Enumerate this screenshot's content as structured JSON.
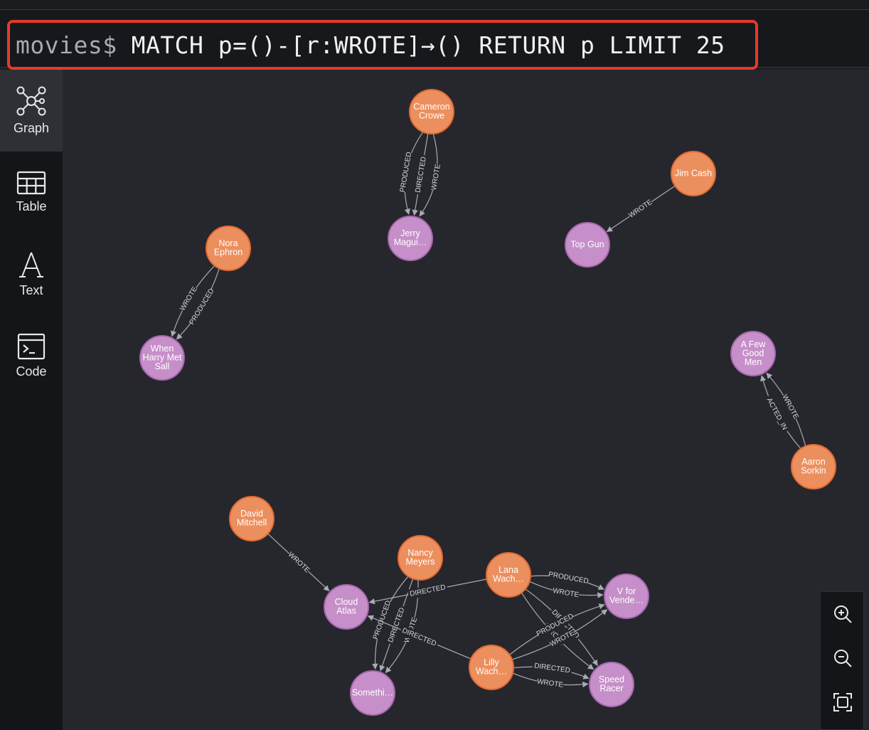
{
  "query": {
    "prompt": "movies$",
    "text": "MATCH p=()-[r:WROTE]→() RETURN p LIMIT 25"
  },
  "sidebar": {
    "items": [
      {
        "label": "Graph",
        "icon": "graph-icon",
        "active": true
      },
      {
        "label": "Table",
        "icon": "table-icon",
        "active": false
      },
      {
        "label": "Text",
        "icon": "text-icon",
        "active": false
      },
      {
        "label": "Code",
        "icon": "code-icon",
        "active": false
      }
    ]
  },
  "zoom": {
    "controls": [
      "zoom-in-icon",
      "zoom-out-icon",
      "fit-screen-icon"
    ]
  },
  "colors": {
    "person": "#ec8f5e",
    "person_border": "#e26a32",
    "movie": "#c68fc9",
    "movie_border": "#a668ad",
    "edge": "#a9abb3",
    "canvas": "#26272d",
    "highlight": "#e53a2a"
  },
  "graph": {
    "nodes": [
      {
        "id": "cameron",
        "type": "person",
        "lines": [
          "Cameron",
          "Crowe"
        ]
      },
      {
        "id": "jerry",
        "type": "movie",
        "lines": [
          "Jerry",
          "Magui…"
        ]
      },
      {
        "id": "jimcash",
        "type": "person",
        "lines": [
          "Jim Cash"
        ]
      },
      {
        "id": "topgun",
        "type": "movie",
        "lines": [
          "Top Gun"
        ]
      },
      {
        "id": "nora",
        "type": "person",
        "lines": [
          "Nora",
          "Ephron"
        ]
      },
      {
        "id": "harry",
        "type": "movie",
        "lines": [
          "When",
          "Harry Met",
          "Sall"
        ]
      },
      {
        "id": "fewgood",
        "type": "movie",
        "lines": [
          "A Few",
          "Good",
          "Men"
        ]
      },
      {
        "id": "aaron",
        "type": "person",
        "lines": [
          "Aaron",
          "Sorkin"
        ]
      },
      {
        "id": "david",
        "type": "person",
        "lines": [
          "David",
          "Mitchell"
        ]
      },
      {
        "id": "nancy",
        "type": "person",
        "lines": [
          "Nancy",
          "Meyers"
        ]
      },
      {
        "id": "lana",
        "type": "person",
        "lines": [
          "Lana",
          "Wach…"
        ]
      },
      {
        "id": "vfor",
        "type": "movie",
        "lines": [
          "V for",
          "Vende…"
        ]
      },
      {
        "id": "cloud",
        "type": "movie",
        "lines": [
          "Cloud",
          "Atlas"
        ]
      },
      {
        "id": "lilly",
        "type": "person",
        "lines": [
          "Lilly",
          "Wach…"
        ]
      },
      {
        "id": "speed",
        "type": "movie",
        "lines": [
          "Speed",
          "Racer"
        ]
      },
      {
        "id": "somethi",
        "type": "movie",
        "lines": [
          "Somethi…"
        ]
      }
    ],
    "edges": [
      {
        "from": "cameron",
        "to": "jerry",
        "label": "WROTE"
      },
      {
        "from": "cameron",
        "to": "jerry",
        "label": "DIRECTED"
      },
      {
        "from": "cameron",
        "to": "jerry",
        "label": "PRODUCED"
      },
      {
        "from": "jimcash",
        "to": "topgun",
        "label": "WROTE"
      },
      {
        "from": "nora",
        "to": "harry",
        "label": "PRODUCED"
      },
      {
        "from": "nora",
        "to": "harry",
        "label": "WROTE"
      },
      {
        "from": "aaron",
        "to": "fewgood",
        "label": "ACTED_IN"
      },
      {
        "from": "aaron",
        "to": "fewgood",
        "label": "WROTE"
      },
      {
        "from": "david",
        "to": "cloud",
        "label": "WROTE"
      },
      {
        "from": "nancy",
        "to": "somethi",
        "label": "WROTE"
      },
      {
        "from": "nancy",
        "to": "somethi",
        "label": "DIRECTED"
      },
      {
        "from": "nancy",
        "to": "somethi",
        "label": "PRODUCED"
      },
      {
        "from": "lana",
        "to": "cloud",
        "label": "DIRECTED"
      },
      {
        "from": "lilly",
        "to": "cloud",
        "label": "DIRECTED"
      },
      {
        "from": "lana",
        "to": "vfor",
        "label": "PRODUCED"
      },
      {
        "from": "lana",
        "to": "vfor",
        "label": "WROTE"
      },
      {
        "from": "lana",
        "to": "speed",
        "label": "DIRECTED"
      },
      {
        "from": "lana",
        "to": "speed",
        "label": "WROTE"
      },
      {
        "from": "lilly",
        "to": "vfor",
        "label": "PRODUCED"
      },
      {
        "from": "lilly",
        "to": "vfor",
        "label": "WROTE"
      },
      {
        "from": "lilly",
        "to": "speed",
        "label": "DIRECTED"
      },
      {
        "from": "lilly",
        "to": "speed",
        "label": "WROTE"
      }
    ]
  }
}
